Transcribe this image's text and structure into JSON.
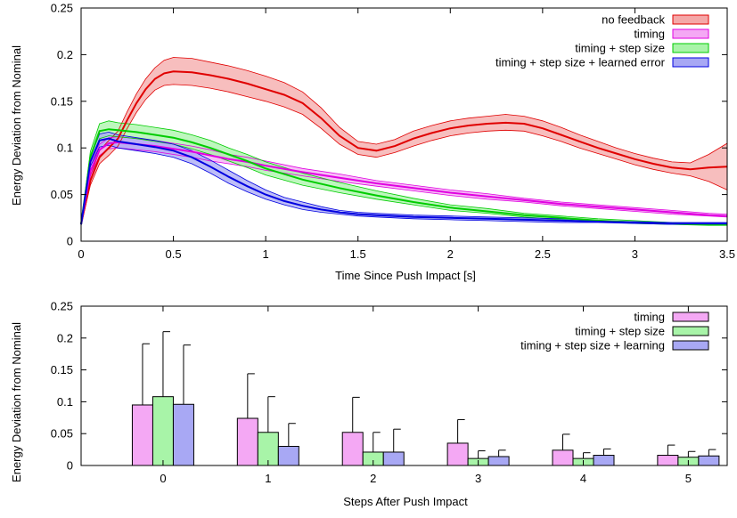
{
  "chart_data": [
    {
      "type": "line",
      "xlabel": "Time Since Push Impact [s]",
      "ylabel": "Energy Deviation from Nominal",
      "xlim": [
        0,
        3.5
      ],
      "ylim": [
        0,
        0.25
      ],
      "xticks": [
        "0",
        "0.5",
        "1",
        "1.5",
        "2",
        "2.5",
        "3",
        "3.5"
      ],
      "yticks": [
        "0",
        "0.05",
        "0.1",
        "0.15",
        "0.2",
        "0.25"
      ],
      "legend_position": "top-right",
      "grid": false,
      "series": [
        {
          "name": "no feedback",
          "line_color": "#e00000",
          "fill_color": "#f4a8a8",
          "x": [
            0,
            0.05,
            0.1,
            0.15,
            0.2,
            0.25,
            0.3,
            0.35,
            0.4,
            0.45,
            0.5,
            0.6,
            0.7,
            0.8,
            0.9,
            1.0,
            1.1,
            1.2,
            1.3,
            1.4,
            1.5,
            1.6,
            1.7,
            1.8,
            1.9,
            2.0,
            2.1,
            2.2,
            2.3,
            2.4,
            2.5,
            2.6,
            2.7,
            2.8,
            2.9,
            3.0,
            3.1,
            3.2,
            3.3,
            3.4,
            3.5
          ],
          "y": [
            0.018,
            0.065,
            0.09,
            0.1,
            0.11,
            0.13,
            0.148,
            0.163,
            0.174,
            0.18,
            0.182,
            0.181,
            0.178,
            0.174,
            0.169,
            0.163,
            0.157,
            0.148,
            0.132,
            0.113,
            0.1,
            0.097,
            0.102,
            0.11,
            0.116,
            0.121,
            0.124,
            0.126,
            0.127,
            0.126,
            0.121,
            0.114,
            0.107,
            0.1,
            0.094,
            0.088,
            0.083,
            0.079,
            0.077,
            0.079,
            0.08
          ],
          "lower": [
            0.017,
            0.06,
            0.083,
            0.092,
            0.102,
            0.121,
            0.138,
            0.152,
            0.162,
            0.167,
            0.168,
            0.167,
            0.164,
            0.16,
            0.155,
            0.15,
            0.144,
            0.136,
            0.121,
            0.104,
            0.093,
            0.09,
            0.095,
            0.102,
            0.108,
            0.113,
            0.116,
            0.118,
            0.119,
            0.118,
            0.113,
            0.107,
            0.1,
            0.094,
            0.088,
            0.082,
            0.077,
            0.073,
            0.07,
            0.064,
            0.055
          ],
          "upper": [
            0.019,
            0.07,
            0.097,
            0.108,
            0.118,
            0.139,
            0.158,
            0.174,
            0.186,
            0.194,
            0.197,
            0.196,
            0.192,
            0.188,
            0.183,
            0.177,
            0.17,
            0.16,
            0.143,
            0.122,
            0.107,
            0.104,
            0.109,
            0.118,
            0.124,
            0.129,
            0.132,
            0.134,
            0.136,
            0.134,
            0.129,
            0.122,
            0.114,
            0.107,
            0.1,
            0.094,
            0.089,
            0.085,
            0.084,
            0.093,
            0.105
          ]
        },
        {
          "name": "timing",
          "line_color": "#e000e0",
          "fill_color": "#f4a8f4",
          "x": [
            0,
            0.05,
            0.1,
            0.15,
            0.2,
            0.3,
            0.4,
            0.5,
            0.6,
            0.7,
            0.8,
            0.9,
            1.0,
            1.2,
            1.4,
            1.6,
            1.8,
            2.0,
            2.2,
            2.4,
            2.6,
            2.8,
            3.0,
            3.2,
            3.4,
            3.5
          ],
          "y": [
            0.018,
            0.075,
            0.098,
            0.105,
            0.106,
            0.104,
            0.102,
            0.099,
            0.096,
            0.092,
            0.088,
            0.085,
            0.081,
            0.074,
            0.068,
            0.062,
            0.057,
            0.052,
            0.048,
            0.044,
            0.04,
            0.037,
            0.034,
            0.031,
            0.028,
            0.027
          ],
          "lower": [
            0.017,
            0.07,
            0.092,
            0.099,
            0.1,
            0.098,
            0.096,
            0.093,
            0.09,
            0.086,
            0.083,
            0.08,
            0.076,
            0.07,
            0.064,
            0.059,
            0.054,
            0.049,
            0.045,
            0.042,
            0.038,
            0.035,
            0.032,
            0.029,
            0.027,
            0.026
          ],
          "upper": [
            0.019,
            0.08,
            0.104,
            0.111,
            0.112,
            0.11,
            0.108,
            0.105,
            0.102,
            0.098,
            0.093,
            0.09,
            0.086,
            0.078,
            0.072,
            0.065,
            0.06,
            0.055,
            0.051,
            0.046,
            0.042,
            0.039,
            0.036,
            0.033,
            0.03,
            0.029
          ]
        },
        {
          "name": "timing + step size",
          "line_color": "#00cc00",
          "fill_color": "#a8f4a8",
          "x": [
            0,
            0.05,
            0.1,
            0.15,
            0.2,
            0.3,
            0.4,
            0.5,
            0.6,
            0.7,
            0.8,
            0.9,
            1.0,
            1.2,
            1.4,
            1.6,
            1.8,
            2.0,
            2.2,
            2.4,
            2.6,
            2.8,
            3.0,
            3.2,
            3.4,
            3.5
          ],
          "y": [
            0.018,
            0.09,
            0.118,
            0.12,
            0.119,
            0.117,
            0.114,
            0.111,
            0.106,
            0.1,
            0.093,
            0.086,
            0.078,
            0.066,
            0.057,
            0.049,
            0.042,
            0.036,
            0.032,
            0.028,
            0.025,
            0.022,
            0.02,
            0.019,
            0.018,
            0.018
          ],
          "lower": [
            0.017,
            0.084,
            0.11,
            0.113,
            0.112,
            0.11,
            0.107,
            0.104,
            0.099,
            0.093,
            0.086,
            0.079,
            0.071,
            0.06,
            0.052,
            0.045,
            0.039,
            0.033,
            0.03,
            0.026,
            0.023,
            0.021,
            0.019,
            0.018,
            0.017,
            0.017
          ],
          "upper": [
            0.019,
            0.096,
            0.126,
            0.129,
            0.127,
            0.125,
            0.122,
            0.119,
            0.114,
            0.108,
            0.1,
            0.093,
            0.085,
            0.073,
            0.063,
            0.054,
            0.046,
            0.039,
            0.035,
            0.03,
            0.027,
            0.024,
            0.022,
            0.02,
            0.019,
            0.019
          ]
        },
        {
          "name": "timing + step size + learned error",
          "line_color": "#0000e0",
          "fill_color": "#a8a8f4",
          "x": [
            0,
            0.05,
            0.1,
            0.15,
            0.2,
            0.3,
            0.4,
            0.5,
            0.6,
            0.7,
            0.8,
            0.9,
            1.0,
            1.1,
            1.2,
            1.3,
            1.4,
            1.5,
            1.6,
            1.8,
            2.0,
            2.2,
            2.4,
            2.6,
            2.8,
            3.0,
            3.2,
            3.4,
            3.5
          ],
          "y": [
            0.018,
            0.085,
            0.108,
            0.11,
            0.107,
            0.104,
            0.101,
            0.097,
            0.09,
            0.08,
            0.069,
            0.059,
            0.05,
            0.043,
            0.038,
            0.034,
            0.031,
            0.029,
            0.028,
            0.026,
            0.025,
            0.024,
            0.023,
            0.022,
            0.021,
            0.02,
            0.019,
            0.019,
            0.019
          ],
          "lower": [
            0.017,
            0.08,
            0.101,
            0.103,
            0.1,
            0.097,
            0.094,
            0.09,
            0.083,
            0.073,
            0.062,
            0.053,
            0.045,
            0.039,
            0.034,
            0.031,
            0.029,
            0.027,
            0.026,
            0.024,
            0.023,
            0.022,
            0.021,
            0.02,
            0.02,
            0.019,
            0.018,
            0.018,
            0.018
          ],
          "upper": [
            0.019,
            0.09,
            0.115,
            0.117,
            0.114,
            0.111,
            0.108,
            0.104,
            0.097,
            0.087,
            0.076,
            0.065,
            0.055,
            0.047,
            0.042,
            0.037,
            0.033,
            0.031,
            0.03,
            0.028,
            0.027,
            0.026,
            0.025,
            0.024,
            0.022,
            0.021,
            0.02,
            0.02,
            0.02
          ]
        }
      ]
    },
    {
      "type": "bar",
      "xlabel": "Steps After Push Impact",
      "ylabel": "Energy Deviation from Nominal",
      "ylim": [
        0,
        0.25
      ],
      "yticks": [
        "0",
        "0.05",
        "0.1",
        "0.15",
        "0.2",
        "0.25"
      ],
      "categories": [
        "0",
        "1",
        "2",
        "3",
        "4",
        "5"
      ],
      "legend_position": "top-right",
      "grid": false,
      "series": [
        {
          "name": "timing",
          "color": "#f4a8f4",
          "values": [
            0.095,
            0.074,
            0.052,
            0.035,
            0.024,
            0.016
          ],
          "error": [
            0.096,
            0.07,
            0.055,
            0.037,
            0.025,
            0.016
          ]
        },
        {
          "name": "timing + step size",
          "color": "#a8f4a8",
          "values": [
            0.108,
            0.052,
            0.021,
            0.011,
            0.011,
            0.013
          ],
          "error": [
            0.102,
            0.056,
            0.031,
            0.012,
            0.009,
            0.009
          ]
        },
        {
          "name": "timing + step size + learning",
          "color": "#a8a8f4",
          "values": [
            0.096,
            0.03,
            0.021,
            0.014,
            0.016,
            0.015
          ],
          "error": [
            0.093,
            0.036,
            0.036,
            0.01,
            0.01,
            0.01
          ]
        }
      ]
    }
  ]
}
